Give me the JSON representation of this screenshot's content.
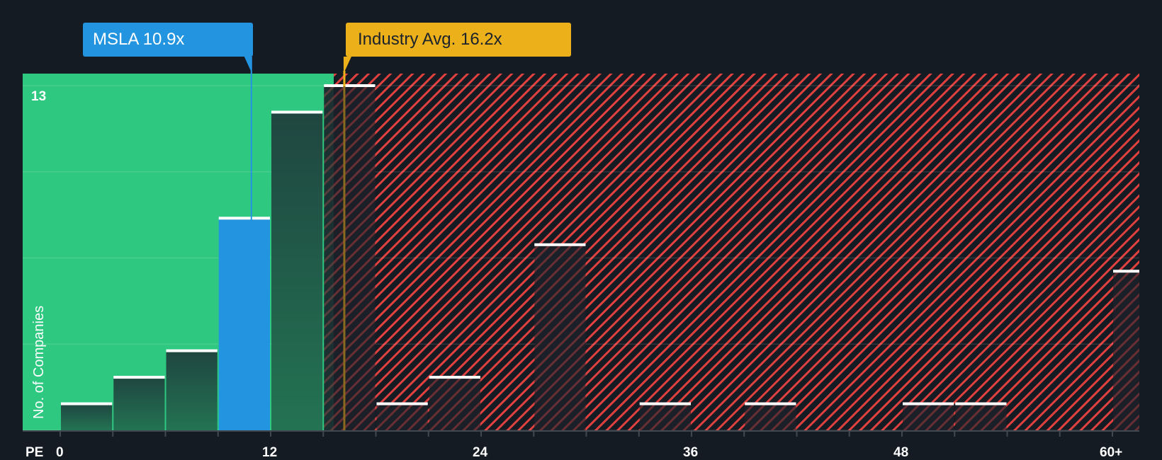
{
  "header": {
    "company_callout": "MSLA 10.9x",
    "industry_callout": "Industry Avg. 16.2x"
  },
  "colors": {
    "background": "#151b23",
    "fair_zone": "#2ec880",
    "company_bar": "#2394df",
    "bar_in_fair": "#1f4a3e",
    "overvalued_hatch": "#e0413f",
    "industry_line": "#ecb11a",
    "bar_top": "#ffffff"
  },
  "chart_data": {
    "type": "bar",
    "title": "",
    "xlabel": "PE",
    "ylabel": "No. of Companies",
    "x_tick_labels": [
      "0",
      "12",
      "24",
      "36",
      "48",
      "60+"
    ],
    "x_tick_values": [
      0,
      12,
      24,
      36,
      48,
      60
    ],
    "y_tick_labels": [
      "13"
    ],
    "ylim": [
      0,
      13
    ],
    "xlim": [
      -2,
      62
    ],
    "bin_width": 3,
    "categories": [
      "0-3",
      "3-6",
      "6-9",
      "9-12",
      "12-15",
      "15-18",
      "18-21",
      "21-24",
      "24-27",
      "27-30",
      "30-33",
      "33-36",
      "36-39",
      "39-42",
      "42-45",
      "45-48",
      "48-51",
      "51-54",
      "54-57",
      "57-60",
      "60+"
    ],
    "bin_starts": [
      0,
      3,
      6,
      9,
      12,
      15,
      18,
      21,
      24,
      27,
      30,
      33,
      36,
      39,
      42,
      45,
      48,
      51,
      54,
      57,
      60
    ],
    "values": [
      1,
      2,
      3,
      8,
      12,
      13,
      1,
      2,
      0,
      7,
      0,
      1,
      0,
      1,
      0,
      0,
      1,
      1,
      0,
      0,
      6
    ],
    "highlight_index": 3,
    "company": {
      "ticker": "MSLA",
      "pe": 10.9
    },
    "industry_avg_pe": 16.2,
    "fair_zone_end_pe": 15.6,
    "grid": true,
    "legend": null
  }
}
